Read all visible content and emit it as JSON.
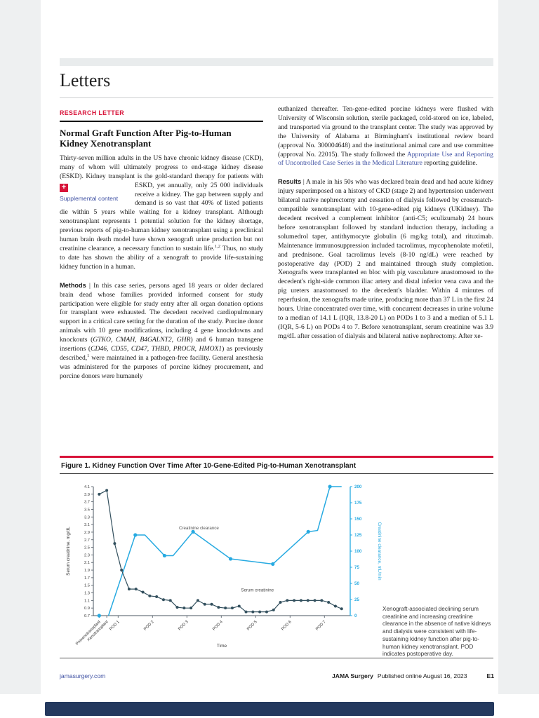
{
  "header": {
    "section_title": "Letters",
    "kicker": "RESEARCH LETTER"
  },
  "article": {
    "title_line1": "Normal Graft Function After Pig-to-Human",
    "title_line2": "Kidney Xenotransplant",
    "supplemental_label": "Supplemental content",
    "supplemental_icon": "+",
    "p1a": "Thirty-seven million adults in the US have chronic kidney disease (CKD), many of whom will ultimately progress to end-stage kidney disease (ESKD). Kidney transplant is the gold-standard therapy for patients with ESKD, yet annually, only",
    "p1b": "25 000 individuals receive a kidney. The gap between supply and demand is so vast that",
    "p1c": [
      {
        "s": "n",
        "t": "40% of listed patients die within 5 years while waiting for a kidney transplant. Although xenotransplant represents 1 potential solution for the kidney shortage, previous reports of pig-to-human kidney xenotransplant using a preclinical human brain death model have shown xenograft urine production but not creatinine clearance, a necessary function to sustain life."
      },
      {
        "s": "sup",
        "t": "1,2"
      },
      {
        "s": "n",
        "t": " Thus, no study to date has shown the ability of a xenograft to provide life-sustaining kidney function in a human."
      }
    ],
    "methods": [
      {
        "s": "b",
        "t": "Methods"
      },
      {
        "s": "n",
        "t": " | In this case series, persons aged 18 years or older declared brain dead whose families provided informed consent for study participation were eligible for study entry after all organ donation options for transplant were exhausted. The decedent received cardiopulmonary support in a critical care setting for the duration of the study. Porcine donor animals with 10 gene modifications, including 4 gene knockdowns and knockouts ("
      },
      {
        "s": "i",
        "t": "GTKO, CMAH, B4GALNT2, GHR"
      },
      {
        "s": "n",
        "t": ") and 6 human transgene insertions ("
      },
      {
        "s": "i",
        "t": "CD46, CD55, CD47, THBD, PROCR, HMOX1"
      },
      {
        "s": "n",
        "t": ") as previously described,"
      },
      {
        "s": "sup",
        "t": "1"
      },
      {
        "s": "n",
        "t": " were maintained in a pathogen-free facility. General anesthesia was administered for the purposes of porcine kidney procurement, and porcine donors were humanely"
      }
    ],
    "right1": [
      {
        "s": "n",
        "t": "euthanized thereafter. Ten-gene-edited porcine kidneys were flushed with University of Wisconsin solution, sterile packaged, cold-stored on ice, labeled, and transported via ground to the transplant center. The study was approved by the University of Alabama at Birmingham's institutional review board (approval No. 300004648) and the institutional animal care and use committee (approval No. 22015). The study followed the "
      },
      {
        "s": "l",
        "t": "Appropriate Use and Reporting of Uncontrolled Case Series in the Medical Literature"
      },
      {
        "s": "n",
        "t": " reporting guideline."
      }
    ],
    "results": [
      {
        "s": "b",
        "t": "Results"
      },
      {
        "s": "n",
        "t": " | A male in his 50s who was declared brain dead and had acute kidney injury superimposed on a history of CKD (stage 2) and hypertension underwent bilateral native nephrectomy and cessation of dialysis followed by crossmatch-compatible xenotransplant with 10-gene-edited pig kidneys (UKidney). The decedent received a complement inhibitor (anti-C5; eculizumab) 24 hours before xenotransplant followed by standard induction therapy, including a solumedrol taper, antithymocyte globulin (6 mg/kg total), and rituximab. Maintenance immunosuppression included tacrolimus, mycophenolate mofetil, and prednisone. Goal tacrolimus levels (8-10 ng/dL) were reached by postoperative day (POD) 2 and maintained through study completion. Xenografts were transplanted en bloc with pig vasculature anastomosed to the decedent's right-side common iliac artery and distal inferior vena cava and the pig ureters anastomosed to the decedent's bladder. Within 4 minutes of reperfusion, the xenografts made urine, producing more than 37 L in the first 24 hours. Urine concentrated over time, with concurrent decreases in urine volume to a median of 14.1 L (IQR, 13.8-20 L) on PODs 1 to 3 and a median of 5.1 L (IQR, 5-6 L) on PODs 4 to 7. Before xenotransplant, serum creatinine was 3.9 mg/dL after cessation of dialysis and bilateral native nephrectomy. After xe-"
      }
    ]
  },
  "figure": {
    "title": "Figure 1. Kidney Function Over Time After 10-Gene-Edited Pig-to-Human Xenotransplant",
    "caption": "Xenograft-associated declining serum creatinine and increasing creatinine clearance in the absence of native kidneys and dialysis were consistent with life-sustaining kidney function after pig-to-human kidney xenotransplant. POD indicates postoperative day."
  },
  "chart_data": {
    "type": "line",
    "title": "Figure 1. Kidney Function Over Time After 10-Gene-Edited Pig-to-Human Xenotransplant",
    "xlabel": "Time",
    "grid": false,
    "colors": {
      "serum": "#33505e",
      "clearance": "#27aae1"
    },
    "y_left": {
      "label": "Serum creatinine, mg/dL",
      "min": 0.7,
      "max": 4.1,
      "ticks": [
        "4.1",
        "3.9",
        "3.7",
        "3.5",
        "3.3",
        "3.1",
        "2.9",
        "2.7",
        "2.5",
        "2.3",
        "2.1",
        "1.9",
        "1.7",
        "1.5",
        "1.3",
        "1.1",
        "0.9",
        "0.7"
      ]
    },
    "y_right": {
      "label": "Creatinine clearance, mL/min",
      "min": 0,
      "max": 200,
      "ticks": [
        "200",
        "175",
        "150",
        "125",
        "100",
        "75",
        "50",
        "25",
        "0"
      ]
    },
    "categories": [
      {
        "label": "Prexenotransplant",
        "slot": 0.45
      },
      {
        "label": "Xenotransplant",
        "slot": 0.67
      },
      {
        "label": "POD 1",
        "slot": 1
      },
      {
        "label": "POD 2",
        "slot": 2
      },
      {
        "label": "POD 3",
        "slot": 3
      },
      {
        "label": "POD 4",
        "slot": 4
      },
      {
        "label": "POD 5",
        "slot": 5
      },
      {
        "label": "POD 6",
        "slot": 6
      },
      {
        "label": "POD 7",
        "slot": 7
      }
    ],
    "series": [
      {
        "name": "Serum creatinine",
        "axis": "left",
        "points": [
          [
            0.45,
            3.9
          ],
          [
            0.67,
            4.0
          ],
          [
            0.9,
            2.6
          ],
          [
            1.1,
            1.9
          ],
          [
            1.32,
            1.4
          ],
          [
            1.52,
            1.4
          ],
          [
            1.72,
            1.32
          ],
          [
            1.92,
            1.22
          ],
          [
            2.12,
            1.2
          ],
          [
            2.32,
            1.12
          ],
          [
            2.52,
            1.1
          ],
          [
            2.72,
            0.92
          ],
          [
            2.92,
            0.9
          ],
          [
            3.12,
            0.9
          ],
          [
            3.32,
            1.1
          ],
          [
            3.52,
            1.0
          ],
          [
            3.72,
            1.0
          ],
          [
            3.92,
            0.92
          ],
          [
            4.12,
            0.9
          ],
          [
            4.32,
            0.9
          ],
          [
            4.52,
            0.95
          ],
          [
            4.72,
            0.8
          ],
          [
            4.92,
            0.8
          ],
          [
            5.12,
            0.8
          ],
          [
            5.32,
            0.8
          ],
          [
            5.52,
            0.85
          ],
          [
            5.72,
            1.05
          ],
          [
            5.92,
            1.1
          ],
          [
            6.12,
            1.1
          ],
          [
            6.32,
            1.1
          ],
          [
            6.52,
            1.1
          ],
          [
            6.72,
            1.1
          ],
          [
            6.92,
            1.1
          ],
          [
            7.12,
            1.05
          ],
          [
            7.32,
            0.95
          ],
          [
            7.5,
            0.88
          ]
        ]
      },
      {
        "name": "Creatinine clearance",
        "axis": "right",
        "points": [
          [
            0.72,
            0
          ],
          [
            1.5,
            125
          ],
          [
            1.78,
            125
          ],
          [
            2.35,
            93
          ],
          [
            2.6,
            93
          ],
          [
            3.18,
            130
          ],
          [
            4.27,
            88
          ],
          [
            5.5,
            80
          ],
          [
            6.53,
            130
          ],
          [
            6.8,
            132
          ],
          [
            7.16,
            200
          ],
          [
            7.5,
            200
          ]
        ],
        "marker_points": [
          [
            1.5,
            125
          ],
          [
            2.35,
            93
          ],
          [
            3.18,
            130
          ],
          [
            4.27,
            88
          ],
          [
            5.5,
            80
          ],
          [
            6.53,
            130
          ],
          [
            7.16,
            200
          ]
        ],
        "isolated_point": [
          0.45,
          0
        ]
      }
    ],
    "annotations": [
      {
        "text": "Creatinine clearance",
        "slot": 3.35,
        "value": 2.97,
        "color": "#555555"
      },
      {
        "text": "Serum creatinine",
        "slot": 5.05,
        "value": 1.34,
        "color": "#4a4a4a"
      }
    ]
  },
  "footer": {
    "site": "jamasurgery.com",
    "journal": "JAMA Surgery",
    "published": "Published online August 16, 2023",
    "page_no": "E1"
  }
}
